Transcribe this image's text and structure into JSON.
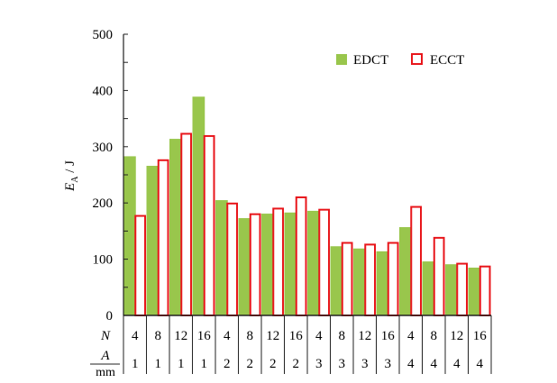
{
  "chart_data": {
    "type": "bar",
    "ylabel_main": "E",
    "ylabel_sub": "A",
    "ylabel_unit": " / J",
    "ylim": [
      0,
      500
    ],
    "yticks": [
      0,
      100,
      200,
      300,
      400,
      500
    ],
    "legend_position": "top-right",
    "row_labels": {
      "n": "N",
      "a_num": "A",
      "a_den": "mm"
    },
    "N": [
      "4",
      "8",
      "12",
      "16",
      "4",
      "8",
      "12",
      "16",
      "4",
      "8",
      "12",
      "16",
      "4",
      "8",
      "12",
      "16"
    ],
    "A": [
      "1",
      "1",
      "1",
      "1",
      "2",
      "2",
      "2",
      "2",
      "3",
      "3",
      "3",
      "3",
      "4",
      "4",
      "4",
      "4"
    ],
    "series": [
      {
        "name": "EDCT",
        "color": "#99c64c",
        "style": "filled",
        "values": [
          283,
          266,
          314,
          389,
          205,
          173,
          181,
          183,
          186,
          123,
          119,
          114,
          157,
          96,
          91,
          85
        ]
      },
      {
        "name": "ECCT",
        "color": "#e8161b",
        "style": "outline",
        "values": [
          177,
          276,
          323,
          319,
          199,
          180,
          190,
          210,
          188,
          129,
          126,
          129,
          193,
          138,
          92,
          87
        ]
      }
    ]
  }
}
